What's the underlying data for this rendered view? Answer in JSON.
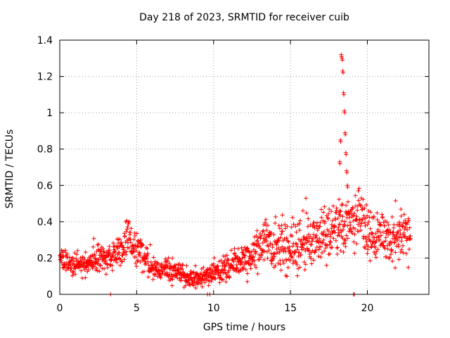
{
  "chart_data": {
    "type": "scatter",
    "title": "Day 218 of 2023, SRMTID for receiver cuib",
    "xlabel": "GPS time / hours",
    "ylabel": "SRMTID / TECUs",
    "xlim": [
      0,
      24
    ],
    "ylim": [
      0,
      1.4
    ],
    "x_ticks": [
      "0",
      "5",
      "10",
      "15",
      "20"
    ],
    "x_tick_values": [
      0,
      5,
      10,
      15,
      20
    ],
    "y_ticks": [
      "0",
      "0.2",
      "0.4",
      "0.6",
      "0.8",
      "1",
      "1.2",
      "1.4"
    ],
    "y_tick_values": [
      0,
      0.2,
      0.4,
      0.6,
      0.8,
      1.0,
      1.2,
      1.4
    ],
    "grid": true,
    "marker": "+",
    "series": [
      {
        "name": "SRMTID",
        "color": "#ff0000",
        "profile": {
          "description": "approximate trend of the plotted points (x in hours, y in TECU)",
          "x": [
            0,
            0.5,
            1,
            1.5,
            2,
            2.5,
            3,
            3.5,
            4,
            4.5,
            5,
            5.5,
            6,
            6.5,
            7,
            7.5,
            8,
            8.5,
            9,
            9.5,
            10,
            10.5,
            11,
            11.5,
            12,
            12.5,
            13,
            13.5,
            14,
            14.5,
            15,
            15.5,
            16,
            16.5,
            17,
            17.5,
            18,
            18.5,
            19,
            19.5,
            20,
            20.5,
            21,
            21.5,
            22,
            22.5,
            22.8
          ],
          "y": [
            0.22,
            0.17,
            0.16,
            0.16,
            0.17,
            0.2,
            0.2,
            0.2,
            0.25,
            0.32,
            0.25,
            0.2,
            0.15,
            0.13,
            0.14,
            0.12,
            0.1,
            0.08,
            0.08,
            0.1,
            0.12,
            0.12,
            0.15,
            0.18,
            0.2,
            0.23,
            0.27,
            0.3,
            0.25,
            0.25,
            0.25,
            0.27,
            0.28,
            0.3,
            0.32,
            0.33,
            0.35,
            0.38,
            0.36,
            0.4,
            0.35,
            0.33,
            0.32,
            0.3,
            0.32,
            0.32,
            0.33
          ],
          "spread": [
            0.06,
            0.05,
            0.05,
            0.05,
            0.05,
            0.07,
            0.06,
            0.07,
            0.08,
            0.1,
            0.07,
            0.06,
            0.06,
            0.05,
            0.05,
            0.05,
            0.04,
            0.04,
            0.04,
            0.04,
            0.05,
            0.05,
            0.06,
            0.07,
            0.08,
            0.09,
            0.1,
            0.12,
            0.12,
            0.12,
            0.12,
            0.12,
            0.13,
            0.12,
            0.12,
            0.13,
            0.13,
            0.12,
            0.13,
            0.14,
            0.14,
            0.13,
            0.13,
            0.12,
            0.11,
            0.11,
            0.1
          ]
        },
        "spike": {
          "x": [
            18.15,
            18.2,
            18.25,
            18.3,
            18.35,
            18.4,
            18.45,
            18.5,
            18.55,
            18.6,
            18.65,
            18.7
          ],
          "y": [
            0.45,
            0.73,
            0.85,
            1.32,
            1.3,
            1.23,
            1.11,
            1.01,
            0.89,
            0.78,
            0.68,
            0.6
          ]
        },
        "outliers_near_zero": {
          "x": [
            3.3,
            9.6,
            9.75,
            19.1,
            19.15
          ],
          "y": [
            0,
            0,
            0,
            0,
            0
          ]
        },
        "seed": 218
      }
    ]
  }
}
